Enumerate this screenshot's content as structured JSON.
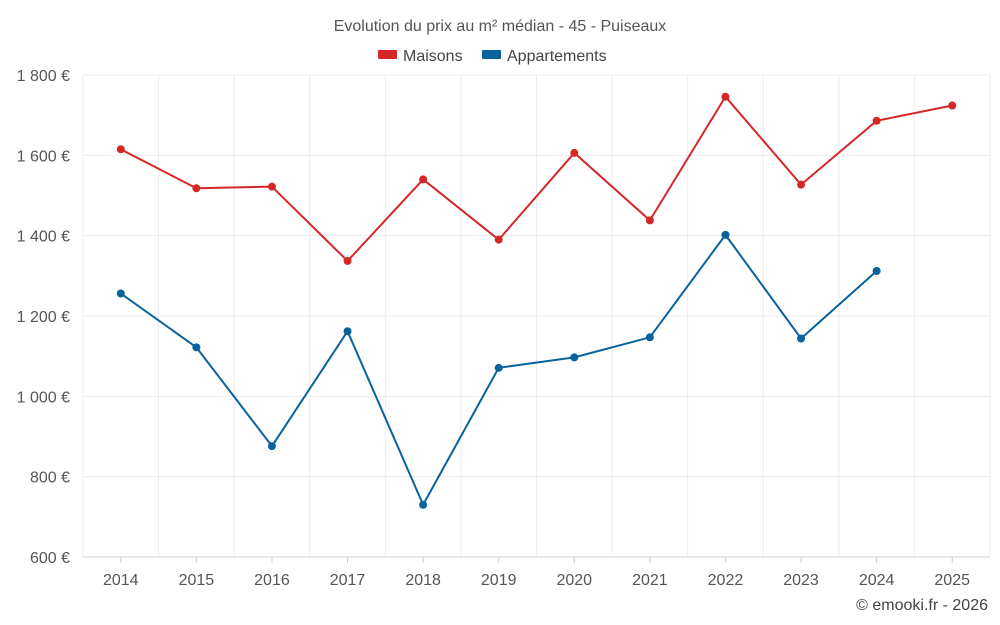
{
  "chart_data": {
    "type": "line",
    "title": "Evolution du prix au m² médian - 45 - Puiseaux",
    "categories": [
      "2014",
      "2015",
      "2016",
      "2017",
      "2018",
      "2019",
      "2020",
      "2021",
      "2022",
      "2023",
      "2024",
      "2025"
    ],
    "ylim": [
      600,
      1800
    ],
    "yticks": [
      600,
      800,
      1000,
      1200,
      1400,
      1600,
      1800
    ],
    "ytick_labels": [
      "600 €",
      "800 €",
      "1 000 €",
      "1 200 €",
      "1 400 €",
      "1 600 €",
      "1 800 €"
    ],
    "grid": true,
    "legend_position": "top-center",
    "series": [
      {
        "name": "Maisons",
        "color": "#d62728",
        "values": [
          1615,
          1518,
          1522,
          1337,
          1540,
          1390,
          1606,
          1438,
          1746,
          1527,
          1686,
          1724
        ]
      },
      {
        "name": "Appartements",
        "color": "#08629b",
        "values": [
          1256,
          1122,
          876,
          1162,
          730,
          1071,
          1097,
          1147,
          1402,
          1144,
          1312,
          null
        ]
      }
    ]
  },
  "credit": "© emooki.fr - 2026"
}
